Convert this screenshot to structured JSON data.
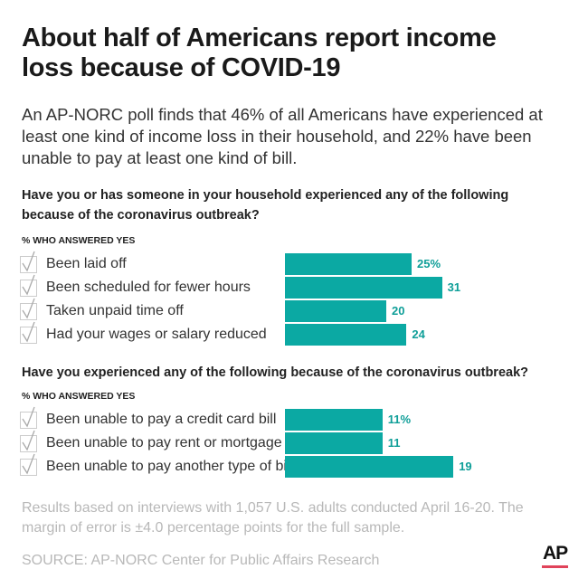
{
  "title_lines": [
    "About half of Americans report income",
    "loss because of COVID-19"
  ],
  "subtitle_lines": [
    "An AP-NORC poll finds that 46% of all Americans have experienced at",
    "least one kind of income loss in their household, and 22% have been",
    "unable to pay at least one kind of bill."
  ],
  "footnote_lines": [
    "Results based on interviews with 1,057 U.S. adults conducted April 16-20. The",
    "margin of error is ±4.0 percentage points for the full sample."
  ],
  "source": "SOURCE: AP-NORC Center for Public Affairs Research",
  "logo": "AP",
  "colors": {
    "bar": "#0ba9a3",
    "label": "#0e9e98",
    "logo_underline": "#e0435a"
  },
  "chart_data": [
    {
      "type": "bar",
      "orientation": "horizontal",
      "title_lines": [
        "Have you or has someone in your household experienced any of the following",
        "because of the coronavirus outbreak?"
      ],
      "ylabel": "% WHO ANSWERED YES",
      "categories": [
        "Been laid off",
        "Been scheduled for fewer hours",
        "Taken unpaid time off",
        "Had your wages or salary reduced"
      ],
      "values": [
        25,
        31,
        20,
        24
      ],
      "data_labels": [
        "25%",
        "31",
        "20",
        "24"
      ]
    },
    {
      "type": "bar",
      "orientation": "horizontal",
      "title_lines": [
        "Have you experienced any of the following because of the coronavirus outbreak?"
      ],
      "ylabel": "% WHO ANSWERED YES",
      "categories": [
        "Been unable to pay a credit card bill",
        "Been unable to pay rent or mortgage",
        "Been unable to pay another type of bill"
      ],
      "values": [
        11,
        11,
        19
      ],
      "data_labels": [
        "11%",
        "11",
        "19"
      ]
    }
  ]
}
